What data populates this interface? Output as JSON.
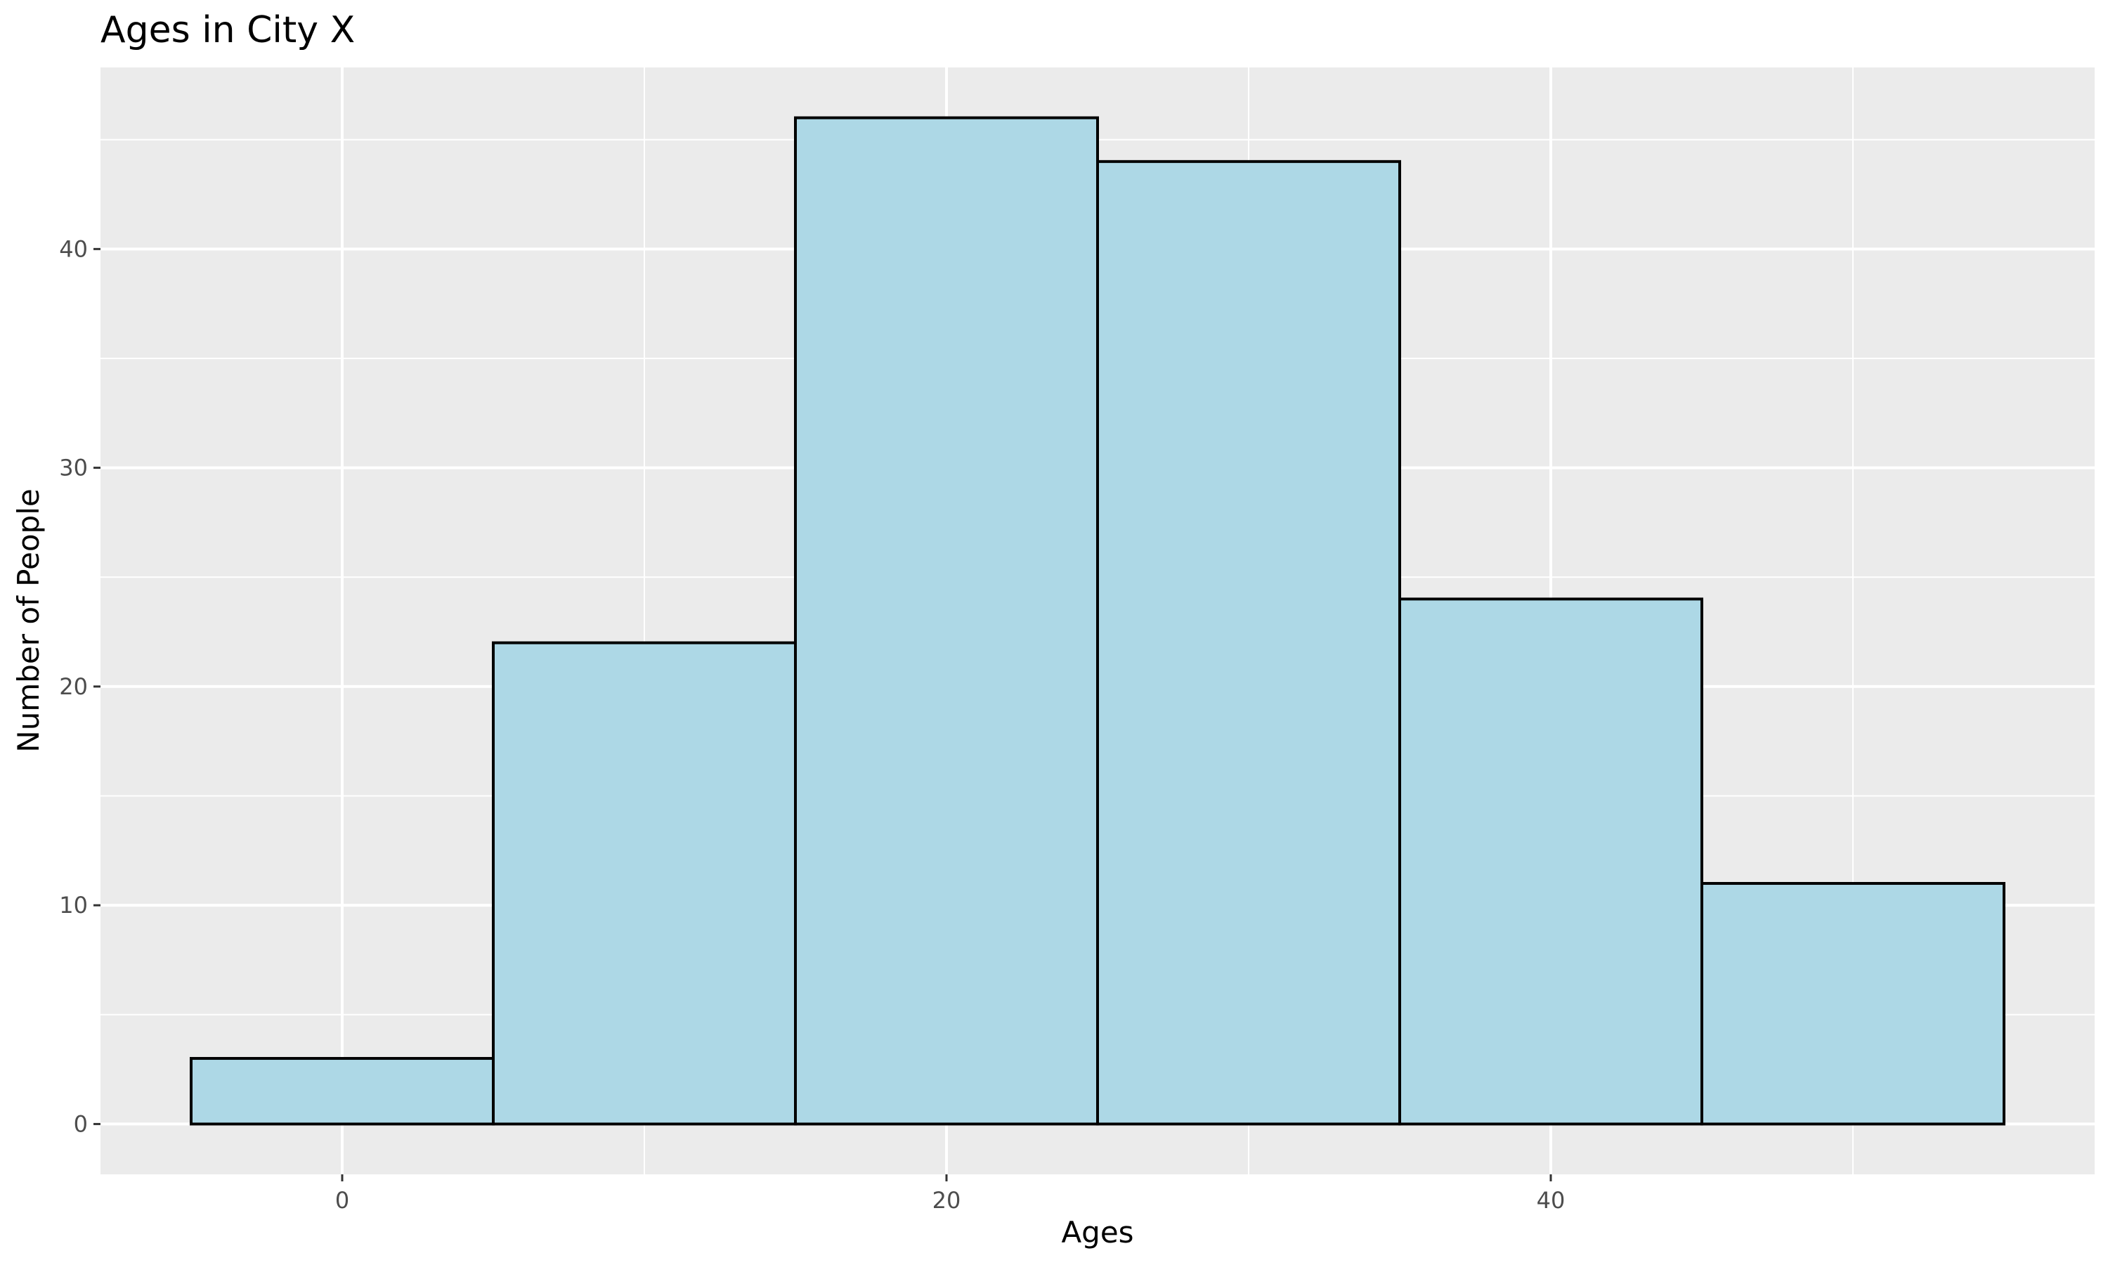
{
  "chart_data": {
    "type": "bar",
    "title": "Ages in City X",
    "xlabel": "Ages",
    "ylabel": "Number of People",
    "bin_width": 10,
    "bins": [
      {
        "start": -5,
        "end": 5,
        "count": 3
      },
      {
        "start": 5,
        "end": 15,
        "count": 22
      },
      {
        "start": 15,
        "end": 25,
        "count": 46
      },
      {
        "start": 25,
        "end": 35,
        "count": 44
      },
      {
        "start": 35,
        "end": 45,
        "count": 24
      },
      {
        "start": 45,
        "end": 55,
        "count": 11
      }
    ],
    "xlim": [
      -8,
      58
    ],
    "ylim": [
      -2.3,
      48.3
    ],
    "x_ticks": [
      0,
      20,
      40
    ],
    "x_tick_labels": [
      "0",
      "20",
      "40"
    ],
    "x_minor_gridlines": [
      10,
      30,
      50
    ],
    "y_ticks": [
      0,
      10,
      20,
      30,
      40
    ],
    "y_tick_labels": [
      "0",
      "10",
      "20",
      "30",
      "40"
    ],
    "y_minor_gridlines": [
      5,
      15,
      25,
      35,
      45
    ],
    "grid": true,
    "legend": "none",
    "colors": {
      "panel_background": "#ebebeb",
      "gridline": "#ffffff",
      "bar_fill": "#add8e6",
      "bar_outline": "#000000",
      "tick_label": "#4d4d4d"
    }
  }
}
